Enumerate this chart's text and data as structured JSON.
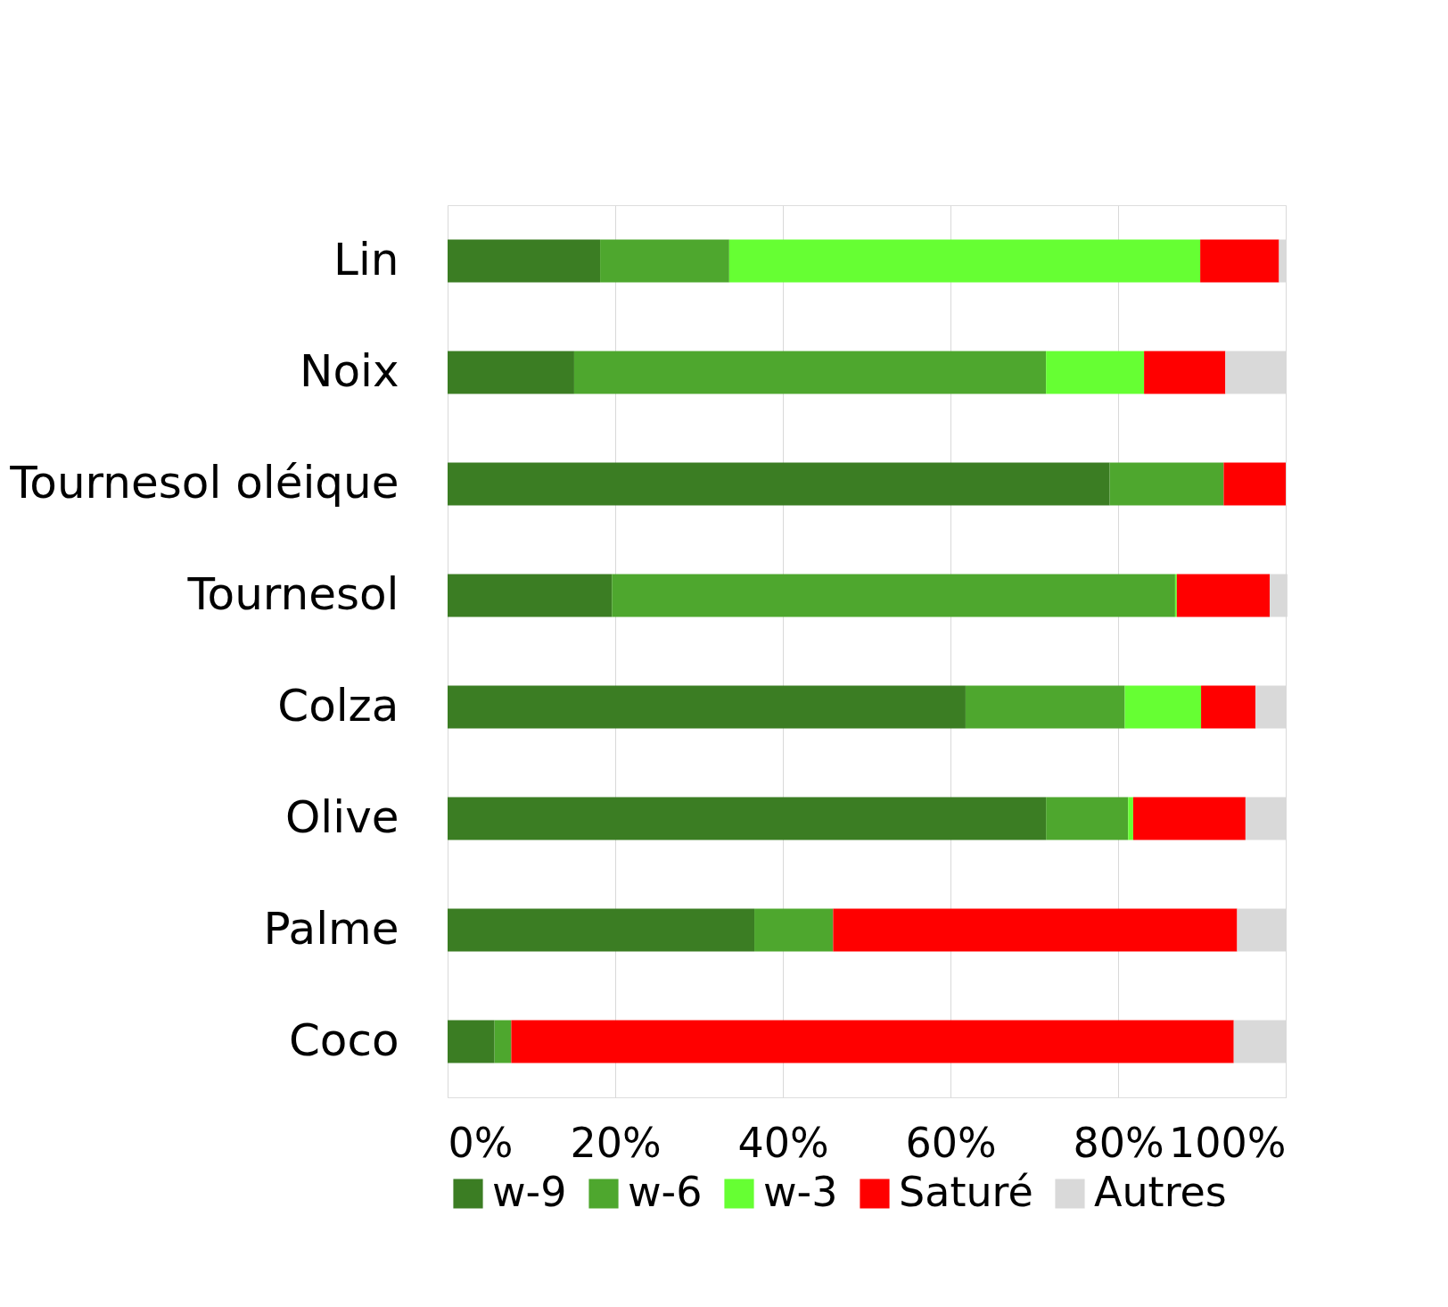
{
  "chart_data": {
    "type": "bar",
    "orientation": "horizontal",
    "stacked": true,
    "categories": [
      "Lin",
      "Noix",
      "Tournesol oléique",
      "Tournesol",
      "Colza",
      "Olive",
      "Palme",
      "Coco"
    ],
    "series": [
      {
        "name": "w-9",
        "color": "#3b7d23",
        "values": [
          18.2,
          15.1,
          79.0,
          19.6,
          61.8,
          71.4,
          36.6,
          5.6
        ]
      },
      {
        "name": "w-6",
        "color": "#4ea72e",
        "values": [
          15.4,
          56.3,
          13.6,
          67.2,
          19.0,
          9.8,
          9.4,
          2.0
        ]
      },
      {
        "name": "w-3",
        "color": "#66ff33",
        "values": [
          56.2,
          11.7,
          0,
          0.2,
          9.1,
          0.6,
          0,
          0
        ]
      },
      {
        "name": "Saturé",
        "color": "#ff0000",
        "values": [
          9.4,
          9.7,
          7.4,
          11.1,
          6.5,
          13.4,
          48.2,
          86.2
        ]
      },
      {
        "name": "Autres",
        "color": "#d9d9d9",
        "values": [
          0.8,
          7.2,
          0,
          2.1,
          3.6,
          4.8,
          5.8,
          6.2
        ]
      }
    ],
    "xlim": [
      0,
      100
    ],
    "xticks": [
      {
        "value": 0,
        "label": "0%"
      },
      {
        "value": 20,
        "label": "20%"
      },
      {
        "value": 40,
        "label": "40%"
      },
      {
        "value": 60,
        "label": "60%"
      },
      {
        "value": 80,
        "label": "80%"
      },
      {
        "value": 100,
        "label": "100%"
      }
    ],
    "grid": "x",
    "legend": "bottom"
  }
}
